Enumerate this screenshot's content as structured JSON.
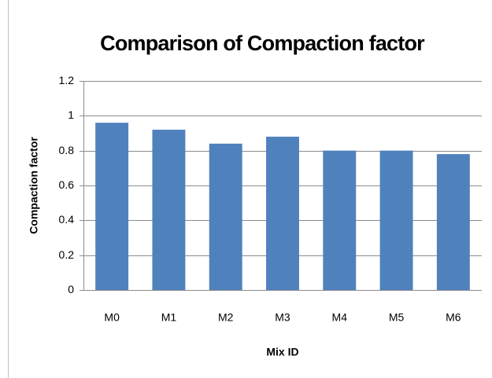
{
  "chart_data": {
    "type": "bar",
    "title": "Comparison of Compaction factor",
    "x_label": "Mix ID",
    "y_label": "Compaction factor",
    "categories": [
      "M0",
      "M1",
      "M2",
      "M3",
      "M4",
      "M5",
      "M6"
    ],
    "values": [
      0.96,
      0.92,
      0.84,
      0.88,
      0.8,
      0.8,
      0.78
    ],
    "color": "#4f81bd",
    "ylim": [
      0,
      1.2
    ],
    "yticks": [
      0,
      0.2,
      0.4,
      0.6,
      0.8,
      1,
      1.2
    ],
    "grid": true
  }
}
